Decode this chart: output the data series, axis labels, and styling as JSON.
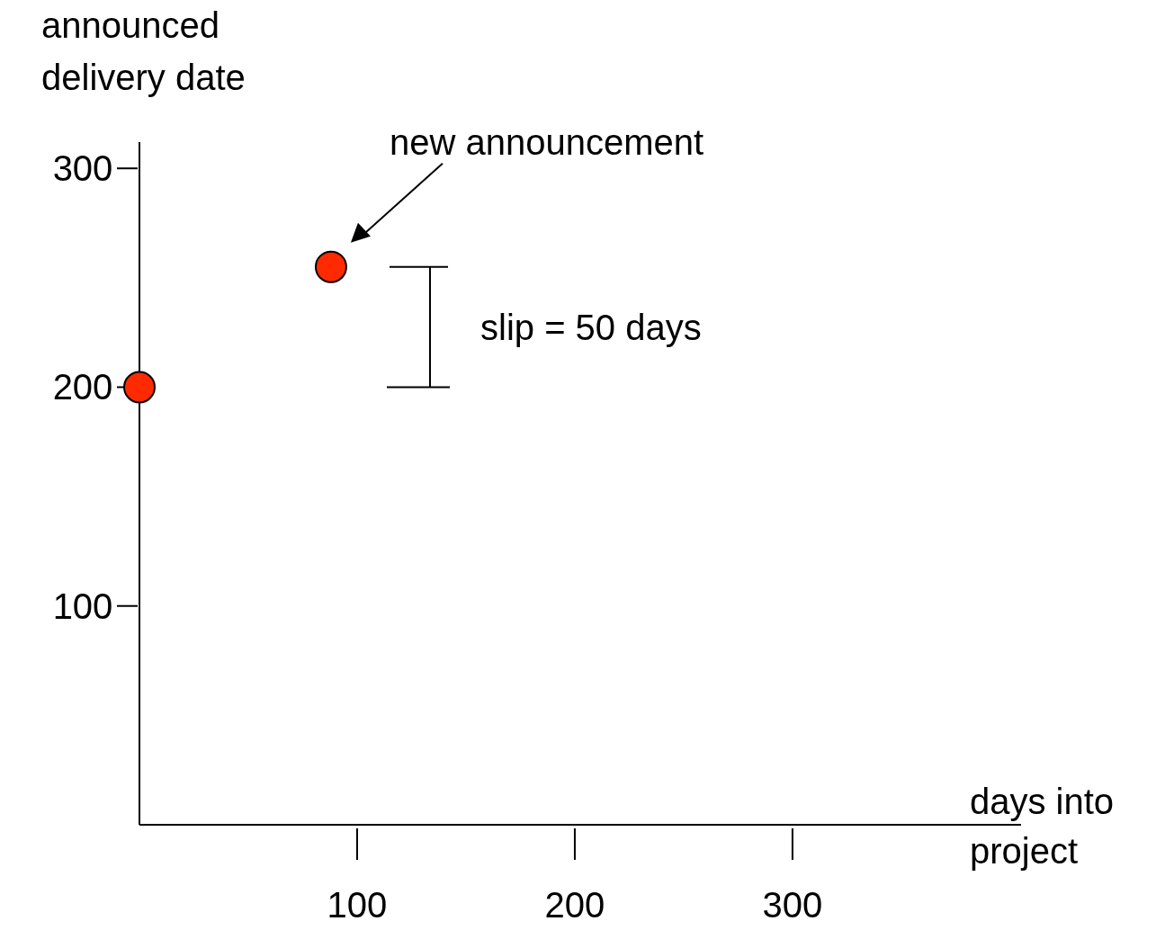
{
  "chart_data": {
    "type": "scatter",
    "xlabel": "days into\nproject",
    "ylabel": "announced\ndelivery date",
    "x": [
      0,
      88
    ],
    "values": [
      200,
      255
    ],
    "color": "#ff2a00",
    "marker": "circle",
    "xlim": [
      0,
      405
    ],
    "ylim": [
      0,
      312
    ],
    "xticks": [
      100,
      200,
      300
    ],
    "yticks": [
      100,
      200,
      300
    ],
    "grid": false,
    "annotations": [
      "new announcement",
      "slip = 50 days"
    ]
  }
}
